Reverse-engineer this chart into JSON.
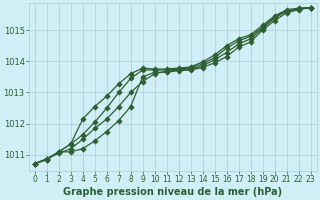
{
  "title": "Graphe pression niveau de la mer (hPa)",
  "background_color": "#d0eef5",
  "grid_color": "#aaccd4",
  "line_color": "#2d6030",
  "marker_color": "#2d6030",
  "xlim": [
    -0.5,
    23.5
  ],
  "ylim": [
    1010.5,
    1015.85
  ],
  "yticks": [
    1011,
    1012,
    1013,
    1014,
    1015
  ],
  "xticks": [
    0,
    1,
    2,
    3,
    4,
    5,
    6,
    7,
    8,
    9,
    10,
    11,
    12,
    13,
    14,
    15,
    16,
    17,
    18,
    19,
    20,
    21,
    22,
    23
  ],
  "series": [
    [
      1010.72,
      1010.88,
      1011.1,
      1011.1,
      1011.2,
      1011.45,
      1011.75,
      1012.1,
      1012.55,
      1013.5,
      1013.65,
      1013.65,
      1013.7,
      1013.72,
      1013.8,
      1013.95,
      1014.15,
      1014.45,
      1014.62,
      1015.0,
      1015.3,
      1015.55,
      1015.65,
      1015.72
    ],
    [
      1010.72,
      1010.88,
      1011.05,
      1011.2,
      1011.5,
      1011.85,
      1012.15,
      1012.55,
      1013.0,
      1013.35,
      1013.6,
      1013.68,
      1013.72,
      1013.75,
      1013.85,
      1014.05,
      1014.28,
      1014.55,
      1014.72,
      1015.05,
      1015.38,
      1015.6,
      1015.68,
      1015.72
    ],
    [
      1010.72,
      1010.85,
      1011.1,
      1011.35,
      1011.65,
      1012.05,
      1012.5,
      1013.0,
      1013.45,
      1013.72,
      1013.72,
      1013.72,
      1013.75,
      1013.78,
      1013.92,
      1014.12,
      1014.42,
      1014.65,
      1014.8,
      1015.08,
      1015.42,
      1015.62,
      1015.68,
      1015.72
    ],
    [
      1010.72,
      1010.85,
      1011.1,
      1011.35,
      1012.15,
      1012.55,
      1012.88,
      1013.28,
      1013.6,
      1013.78,
      1013.75,
      1013.75,
      1013.78,
      1013.82,
      1013.98,
      1014.2,
      1014.5,
      1014.72,
      1014.85,
      1015.15,
      1015.45,
      1015.65,
      1015.7,
      1015.72
    ]
  ],
  "spine_color": "#2d6030",
  "tick_label_fontsize": 6.0,
  "xlabel_fontsize": 7.0,
  "linewidth": 0.9,
  "markersize": 2.8
}
